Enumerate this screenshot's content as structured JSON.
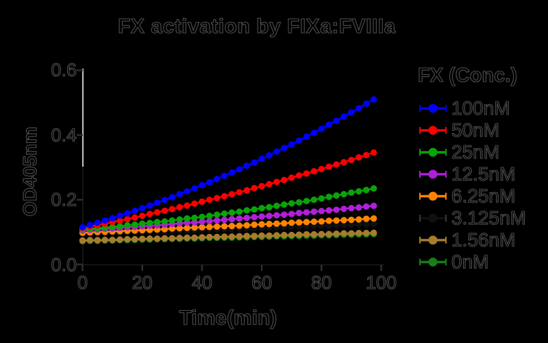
{
  "figure": {
    "title": "FX activation by FIXa:FVIIIa",
    "background_color": "#000000"
  },
  "axes": {
    "x": {
      "label": "Time(min)",
      "tick_labels": [
        "0",
        "20",
        "40",
        "60",
        "80",
        "100"
      ],
      "tick_values": [
        0,
        20,
        40,
        60,
        80,
        100
      ]
    },
    "y": {
      "label": "OD405nm",
      "tick_labels": [
        "0.6",
        "0.4",
        "0.2",
        "0.0"
      ],
      "tick_values": [
        0.6,
        0.4,
        0.2,
        0.0
      ]
    }
  },
  "legend": {
    "title": "FX (Conc.)"
  },
  "chart_data": {
    "type": "scatter",
    "title": "FX activation by FIXa:FVIIIa",
    "xlabel": "Time(min)",
    "ylabel": "OD405nm",
    "xlim": [
      0,
      100
    ],
    "ylim": [
      0.0,
      0.6
    ],
    "grid": false,
    "legend_position": "right",
    "legend_title": "FX (Conc.)",
    "x": [
      0,
      2.5,
      5,
      7.5,
      10,
      12.5,
      15,
      17.5,
      20,
      22.5,
      25,
      27.5,
      30,
      32.5,
      35,
      37.5,
      40,
      42.5,
      45,
      47.5,
      50,
      52.5,
      55,
      57.5,
      60,
      62.5,
      65,
      67.5,
      70,
      72.5,
      75,
      77.5,
      80,
      82.5,
      85,
      87.5,
      90,
      92.5,
      95,
      97.5
    ],
    "series": [
      {
        "name": "100nM",
        "color": "#0000FF",
        "values": [
          0.115,
          0.122,
          0.129,
          0.136,
          0.143,
          0.151,
          0.158,
          0.166,
          0.174,
          0.182,
          0.191,
          0.199,
          0.208,
          0.217,
          0.226,
          0.235,
          0.245,
          0.254,
          0.264,
          0.274,
          0.284,
          0.294,
          0.305,
          0.315,
          0.326,
          0.337,
          0.349,
          0.36,
          0.371,
          0.383,
          0.395,
          0.407,
          0.419,
          0.432,
          0.444,
          0.457,
          0.47,
          0.483,
          0.497,
          0.51
        ]
      },
      {
        "name": "50nM",
        "color": "#FF0000",
        "values": [
          0.112,
          0.117,
          0.121,
          0.126,
          0.131,
          0.135,
          0.14,
          0.145,
          0.15,
          0.156,
          0.161,
          0.166,
          0.171,
          0.177,
          0.182,
          0.188,
          0.194,
          0.2,
          0.205,
          0.211,
          0.217,
          0.223,
          0.229,
          0.236,
          0.242,
          0.248,
          0.255,
          0.261,
          0.268,
          0.275,
          0.281,
          0.288,
          0.295,
          0.302,
          0.309,
          0.316,
          0.323,
          0.331,
          0.338,
          0.346
        ]
      },
      {
        "name": "25nM",
        "color": "#08A408",
        "values": [
          0.108,
          0.11,
          0.112,
          0.114,
          0.116,
          0.118,
          0.121,
          0.123,
          0.126,
          0.128,
          0.131,
          0.133,
          0.136,
          0.139,
          0.142,
          0.144,
          0.147,
          0.15,
          0.154,
          0.157,
          0.16,
          0.163,
          0.167,
          0.17,
          0.174,
          0.177,
          0.181,
          0.185,
          0.189,
          0.192,
          0.196,
          0.2,
          0.204,
          0.209,
          0.213,
          0.217,
          0.222,
          0.226,
          0.23,
          0.235
        ]
      },
      {
        "name": "12.5nM",
        "color": "#B01FD9",
        "values": [
          0.105,
          0.107,
          0.108,
          0.11,
          0.111,
          0.113,
          0.115,
          0.116,
          0.118,
          0.12,
          0.121,
          0.123,
          0.125,
          0.127,
          0.129,
          0.13,
          0.132,
          0.134,
          0.136,
          0.138,
          0.14,
          0.142,
          0.144,
          0.146,
          0.148,
          0.15,
          0.152,
          0.154,
          0.156,
          0.159,
          0.161,
          0.163,
          0.165,
          0.167,
          0.169,
          0.172,
          0.174,
          0.176,
          0.179,
          0.181
        ]
      },
      {
        "name": "6.25nM",
        "color": "#FF8400",
        "values": [
          0.098,
          0.099,
          0.1,
          0.101,
          0.102,
          0.103,
          0.104,
          0.105,
          0.106,
          0.107,
          0.108,
          0.109,
          0.111,
          0.112,
          0.113,
          0.114,
          0.115,
          0.116,
          0.117,
          0.118,
          0.119,
          0.12,
          0.121,
          0.123,
          0.124,
          0.125,
          0.126,
          0.127,
          0.129,
          0.13,
          0.131,
          0.132,
          0.133,
          0.135,
          0.136,
          0.137,
          0.138,
          0.139,
          0.141,
          0.142
        ]
      },
      {
        "name": "3.125nM",
        "color": "#000000",
        "values": [
          0.094,
          0.095,
          0.096,
          0.096,
          0.097,
          0.098,
          0.099,
          0.1,
          0.1,
          0.101,
          0.102,
          0.103,
          0.104,
          0.104,
          0.105,
          0.106,
          0.107,
          0.108,
          0.108,
          0.109,
          0.11,
          0.111,
          0.112,
          0.112,
          0.113,
          0.114,
          0.115,
          0.116,
          0.116,
          0.117,
          0.118,
          0.119,
          0.12,
          0.12,
          0.121,
          0.122,
          0.123,
          0.124,
          0.124,
          0.125
        ]
      },
      {
        "name": "1.56nM",
        "color": "#A87C2E",
        "values": [
          0.074,
          0.075,
          0.075,
          0.076,
          0.076,
          0.077,
          0.078,
          0.078,
          0.079,
          0.08,
          0.08,
          0.081,
          0.081,
          0.082,
          0.083,
          0.083,
          0.084,
          0.085,
          0.085,
          0.086,
          0.086,
          0.087,
          0.088,
          0.088,
          0.089,
          0.089,
          0.09,
          0.091,
          0.091,
          0.092,
          0.093,
          0.093,
          0.094,
          0.094,
          0.095,
          0.096,
          0.096,
          0.097,
          0.097,
          0.098
        ]
      },
      {
        "name": "0nM",
        "color": "#168016",
        "values": [
          0.072,
          0.073,
          0.073,
          0.074,
          0.074,
          0.075,
          0.075,
          0.076,
          0.077,
          0.077,
          0.078,
          0.078,
          0.079,
          0.079,
          0.08,
          0.08,
          0.081,
          0.082,
          0.082,
          0.083,
          0.083,
          0.084,
          0.084,
          0.085,
          0.085,
          0.086,
          0.087,
          0.087,
          0.088,
          0.088,
          0.089,
          0.089,
          0.09,
          0.09,
          0.091,
          0.092,
          0.092,
          0.093,
          0.093,
          0.094
        ]
      }
    ]
  }
}
